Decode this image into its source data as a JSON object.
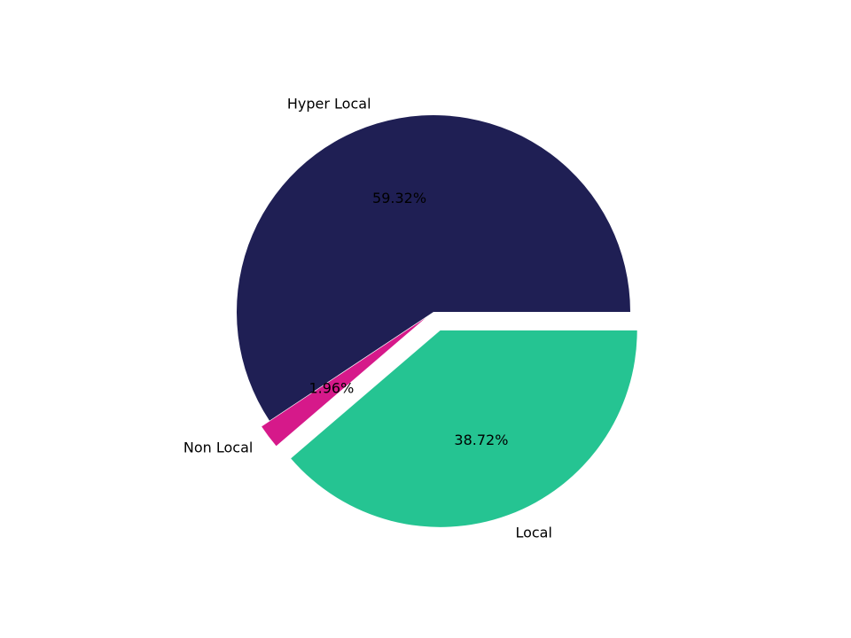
{
  "chart_data": {
    "type": "pie",
    "categories": [
      "Hyper Local",
      "Non Local",
      "Local"
    ],
    "values": [
      59.32,
      1.96,
      38.72
    ],
    "value_labels": [
      "59.32%",
      "1.96%",
      "38.72%"
    ],
    "colors": [
      "#1f1f54",
      "#d6198a",
      "#25c492"
    ],
    "explode": [
      0,
      0.05,
      0.1
    ]
  }
}
